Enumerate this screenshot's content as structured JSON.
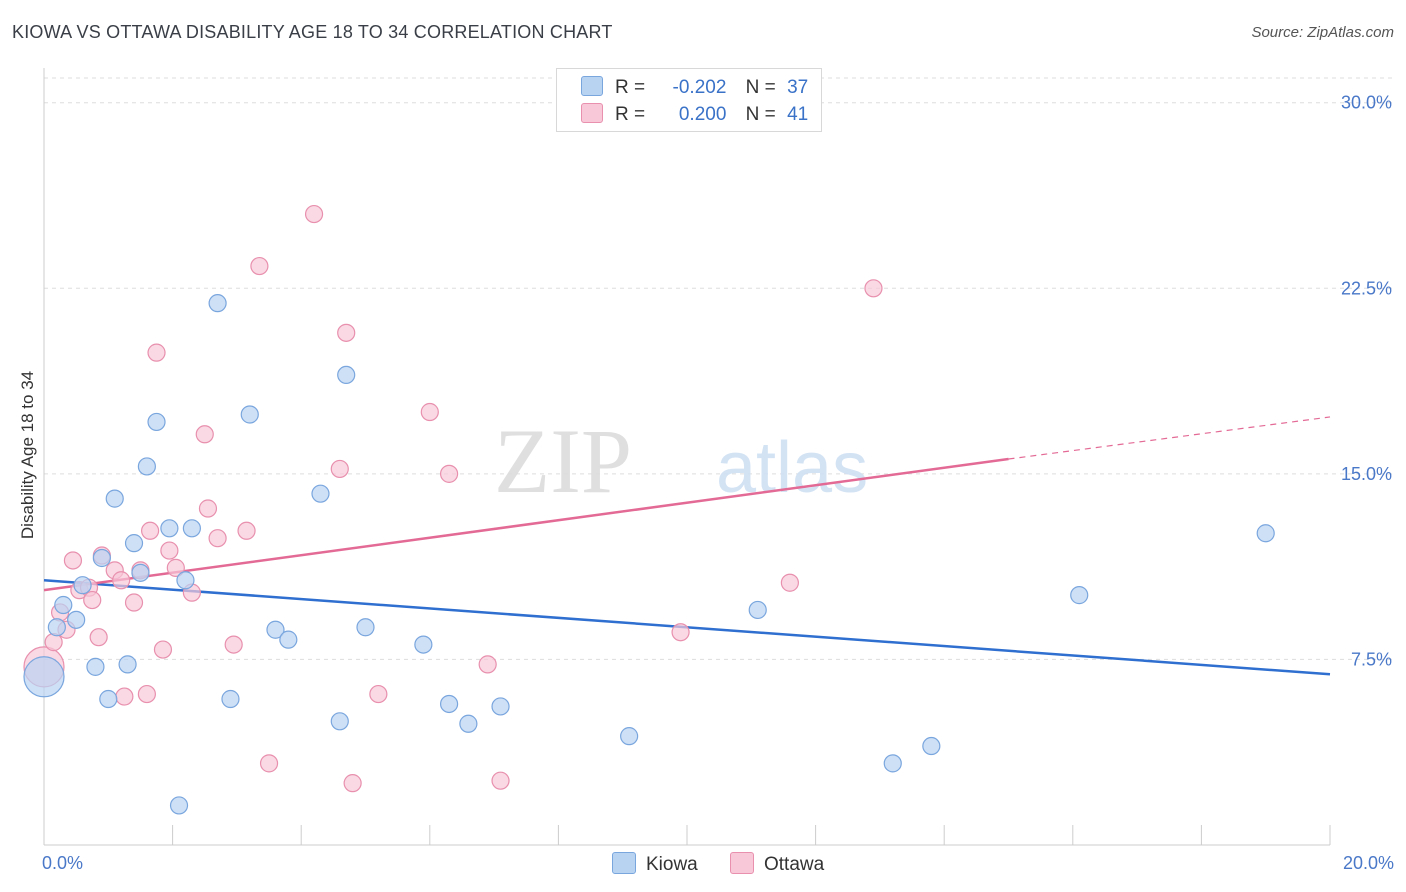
{
  "title": "KIOWA VS OTTAWA DISABILITY AGE 18 TO 34 CORRELATION CHART",
  "source": "Source: ZipAtlas.com",
  "watermark": {
    "zip": "ZIP",
    "atlas": "atlas"
  },
  "legend": {
    "r_label": "R =",
    "n_label": "N =",
    "rows": [
      {
        "name": "Kiowa",
        "r": "-0.202",
        "n": "37"
      },
      {
        "name": "Ottawa",
        "r": "0.200",
        "n": "41"
      }
    ]
  },
  "colors": {
    "kiowa_fill": "#b8d3f2",
    "kiowa_stroke": "#7aa6de",
    "kiowa_line": "#2f6fcf",
    "ottawa_fill": "#f8c8d8",
    "ottawa_stroke": "#e890ad",
    "ottawa_line": "#e36a95",
    "axis_text": "#4a78c8",
    "grid": "#dddddd"
  },
  "chart_data": {
    "type": "scatter",
    "title": "KIOWA VS OTTAWA DISABILITY AGE 18 TO 34 CORRELATION CHART",
    "xlabel": "",
    "ylabel": "Disability Age 18 to 34",
    "xlim": [
      0,
      20
    ],
    "ylim": [
      0,
      31
    ],
    "x_tick_labels": [
      "0.0%",
      "20.0%"
    ],
    "y_ticks": [
      7.5,
      15.0,
      22.5,
      30.0
    ],
    "y_tick_labels": [
      "7.5%",
      "15.0%",
      "22.5%",
      "30.0%"
    ],
    "series": [
      {
        "name": "Kiowa",
        "r": -0.202,
        "n": 37,
        "trend": {
          "x1": 0,
          "y1": 10.7,
          "x2": 20,
          "y2": 6.9
        },
        "points": [
          {
            "x": 0.0,
            "y": 6.8,
            "big": true
          },
          {
            "x": 0.2,
            "y": 8.8
          },
          {
            "x": 0.3,
            "y": 9.7
          },
          {
            "x": 0.5,
            "y": 9.1
          },
          {
            "x": 0.6,
            "y": 10.5
          },
          {
            "x": 0.8,
            "y": 7.2
          },
          {
            "x": 0.9,
            "y": 11.6
          },
          {
            "x": 1.0,
            "y": 5.9
          },
          {
            "x": 1.1,
            "y": 14.0
          },
          {
            "x": 1.3,
            "y": 7.3
          },
          {
            "x": 1.4,
            "y": 12.2
          },
          {
            "x": 1.5,
            "y": 11.0
          },
          {
            "x": 1.6,
            "y": 15.3
          },
          {
            "x": 1.75,
            "y": 17.1
          },
          {
            "x": 1.95,
            "y": 12.8
          },
          {
            "x": 2.1,
            "y": 1.6
          },
          {
            "x": 2.2,
            "y": 10.7
          },
          {
            "x": 2.3,
            "y": 12.8
          },
          {
            "x": 2.7,
            "y": 21.9
          },
          {
            "x": 2.9,
            "y": 5.9
          },
          {
            "x": 3.2,
            "y": 17.4
          },
          {
            "x": 3.6,
            "y": 8.7
          },
          {
            "x": 3.8,
            "y": 8.3
          },
          {
            "x": 4.3,
            "y": 14.2
          },
          {
            "x": 4.6,
            "y": 5.0
          },
          {
            "x": 4.7,
            "y": 19.0
          },
          {
            "x": 5.0,
            "y": 8.8
          },
          {
            "x": 5.9,
            "y": 8.1
          },
          {
            "x": 6.3,
            "y": 5.7
          },
          {
            "x": 6.6,
            "y": 4.9
          },
          {
            "x": 7.1,
            "y": 5.6
          },
          {
            "x": 9.1,
            "y": 4.4
          },
          {
            "x": 11.1,
            "y": 9.5
          },
          {
            "x": 13.2,
            "y": 3.3
          },
          {
            "x": 13.8,
            "y": 4.0
          },
          {
            "x": 16.1,
            "y": 10.1
          },
          {
            "x": 19.0,
            "y": 12.6
          }
        ]
      },
      {
        "name": "Ottawa",
        "r": 0.2,
        "n": 41,
        "trend": {
          "x1": 0,
          "y1": 10.3,
          "x2": 15.0,
          "y2": 15.6
        },
        "trend_dashed": {
          "x1": 15.0,
          "y1": 15.6,
          "x2": 20,
          "y2": 17.3
        },
        "points": [
          {
            "x": 0.0,
            "y": 7.2,
            "big": true
          },
          {
            "x": 0.15,
            "y": 8.2
          },
          {
            "x": 0.25,
            "y": 9.4
          },
          {
            "x": 0.35,
            "y": 8.7
          },
          {
            "x": 0.45,
            "y": 11.5
          },
          {
            "x": 0.55,
            "y": 10.3
          },
          {
            "x": 0.7,
            "y": 10.4
          },
          {
            "x": 0.75,
            "y": 9.9
          },
          {
            "x": 0.85,
            "y": 8.4
          },
          {
            "x": 0.9,
            "y": 11.7
          },
          {
            "x": 1.1,
            "y": 11.1
          },
          {
            "x": 1.2,
            "y": 10.7
          },
          {
            "x": 1.25,
            "y": 6.0
          },
          {
            "x": 1.4,
            "y": 9.8
          },
          {
            "x": 1.5,
            "y": 11.1
          },
          {
            "x": 1.6,
            "y": 6.1
          },
          {
            "x": 1.65,
            "y": 12.7
          },
          {
            "x": 1.75,
            "y": 19.9
          },
          {
            "x": 1.85,
            "y": 7.9
          },
          {
            "x": 1.95,
            "y": 11.9
          },
          {
            "x": 2.05,
            "y": 11.2
          },
          {
            "x": 2.3,
            "y": 10.2
          },
          {
            "x": 2.5,
            "y": 16.6
          },
          {
            "x": 2.55,
            "y": 13.6
          },
          {
            "x": 2.7,
            "y": 12.4
          },
          {
            "x": 2.95,
            "y": 8.1
          },
          {
            "x": 3.15,
            "y": 12.7
          },
          {
            "x": 3.35,
            "y": 23.4
          },
          {
            "x": 3.5,
            "y": 3.3
          },
          {
            "x": 4.2,
            "y": 25.5
          },
          {
            "x": 4.6,
            "y": 15.2
          },
          {
            "x": 4.7,
            "y": 20.7
          },
          {
            "x": 4.8,
            "y": 2.5
          },
          {
            "x": 5.2,
            "y": 6.1
          },
          {
            "x": 6.0,
            "y": 17.5
          },
          {
            "x": 6.3,
            "y": 15.0
          },
          {
            "x": 6.9,
            "y": 7.3
          },
          {
            "x": 7.1,
            "y": 2.6
          },
          {
            "x": 9.9,
            "y": 8.6
          },
          {
            "x": 11.6,
            "y": 10.6
          },
          {
            "x": 12.9,
            "y": 22.5
          }
        ]
      }
    ]
  }
}
